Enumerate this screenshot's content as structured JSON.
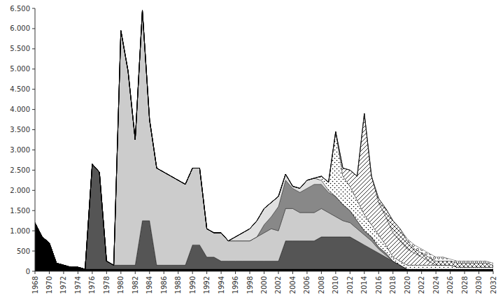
{
  "chart_data": {
    "type": "area",
    "stacked": true,
    "x": [
      1968,
      1969,
      1970,
      1971,
      1972,
      1973,
      1974,
      1975,
      1976,
      1977,
      1978,
      1979,
      1980,
      1981,
      1982,
      1983,
      1984,
      1985,
      1986,
      1987,
      1988,
      1989,
      1990,
      1991,
      1992,
      1993,
      1994,
      1995,
      1996,
      1997,
      1998,
      1999,
      2000,
      2001,
      2002,
      2003,
      2004,
      2005,
      2006,
      2007,
      2008,
      2009,
      2010,
      2011,
      2012,
      2013,
      2014,
      2015,
      2016,
      2017,
      2018,
      2019,
      2020,
      2021,
      2022,
      2023,
      2024,
      2025,
      2026,
      2027,
      2028,
      2029,
      2030,
      2031,
      2032
    ],
    "series": [
      {
        "color": "black",
        "values": [
          1200,
          850,
          700,
          200,
          150,
          100,
          100,
          50,
          50,
          50,
          50,
          50,
          50,
          50,
          50,
          50,
          50,
          50,
          50,
          50,
          50,
          50,
          50,
          50,
          50,
          50,
          50,
          50,
          50,
          50,
          50,
          50,
          50,
          50,
          50,
          50,
          50,
          50,
          50,
          50,
          50,
          50,
          50,
          50,
          50,
          50,
          50,
          50,
          50,
          50,
          50,
          50,
          50,
          50,
          50,
          50,
          50,
          50,
          50,
          50,
          50,
          50,
          50,
          50,
          50
        ]
      },
      {
        "color": "#555555",
        "values": [
          0,
          0,
          0,
          0,
          0,
          0,
          0,
          0,
          2600,
          2400,
          200,
          100,
          100,
          100,
          100,
          1200,
          1200,
          100,
          100,
          100,
          100,
          100,
          600,
          600,
          300,
          300,
          200,
          200,
          200,
          200,
          200,
          200,
          200,
          200,
          200,
          700,
          700,
          700,
          700,
          700,
          800,
          800,
          800,
          800,
          800,
          700,
          600,
          500,
          400,
          300,
          200,
          100,
          0,
          0,
          0,
          0,
          0,
          0,
          0,
          0,
          0,
          0,
          0,
          0,
          0
        ]
      },
      {
        "color": "#cccccc",
        "values": [
          0,
          0,
          0,
          0,
          0,
          0,
          0,
          0,
          0,
          0,
          0,
          0,
          5800,
          4800,
          3100,
          5200,
          2500,
          2400,
          2300,
          2200,
          2100,
          2000,
          1900,
          1900,
          700,
          600,
          700,
          500,
          500,
          500,
          500,
          600,
          700,
          800,
          750,
          800,
          800,
          700,
          700,
          700,
          700,
          600,
          500,
          400,
          350,
          300,
          250,
          200,
          100,
          50,
          0,
          0,
          0,
          0,
          0,
          0,
          0,
          0,
          0,
          0,
          0,
          0,
          0,
          0,
          0
        ]
      },
      {
        "color": "#888888",
        "values": [
          0,
          0,
          0,
          0,
          0,
          0,
          0,
          0,
          0,
          0,
          0,
          0,
          0,
          0,
          0,
          0,
          0,
          0,
          0,
          0,
          0,
          0,
          0,
          0,
          0,
          0,
          0,
          0,
          0,
          0,
          0,
          0,
          200,
          300,
          600,
          700,
          500,
          500,
          600,
          700,
          600,
          500,
          500,
          400,
          300,
          200,
          100,
          100,
          50,
          50,
          0,
          0,
          0,
          0,
          0,
          0,
          0,
          0,
          0,
          0,
          0,
          0,
          0,
          0,
          0
        ]
      },
      {
        "color": "#e0e0e0",
        "values": [
          0,
          0,
          0,
          0,
          0,
          0,
          0,
          0,
          0,
          0,
          0,
          0,
          0,
          0,
          0,
          0,
          0,
          0,
          0,
          0,
          0,
          0,
          0,
          0,
          0,
          0,
          0,
          0,
          100,
          200,
          300,
          400,
          400,
          350,
          250,
          150,
          50,
          100,
          200,
          150,
          100,
          50,
          0,
          0,
          0,
          0,
          0,
          0,
          0,
          0,
          0,
          0,
          0,
          0,
          0,
          0,
          0,
          0,
          0,
          0,
          0,
          0,
          0,
          0,
          0
        ]
      },
      {
        "color": "white",
        "values": [
          0,
          0,
          0,
          0,
          0,
          0,
          0,
          0,
          0,
          0,
          0,
          0,
          0,
          0,
          0,
          0,
          0,
          0,
          0,
          0,
          0,
          0,
          0,
          0,
          0,
          0,
          0,
          0,
          0,
          0,
          0,
          0,
          0,
          0,
          0,
          0,
          0,
          0,
          0,
          0,
          100,
          200,
          1600,
          700,
          600,
          500,
          400,
          300,
          300,
          200,
          100,
          100,
          100,
          100,
          100,
          100,
          100,
          100,
          100,
          50,
          50,
          50,
          50,
          50,
          50
        ]
      },
      {
        "color": "white",
        "values": [
          0,
          0,
          0,
          0,
          0,
          0,
          0,
          0,
          0,
          0,
          0,
          0,
          0,
          0,
          0,
          0,
          0,
          0,
          0,
          0,
          0,
          0,
          0,
          0,
          0,
          0,
          0,
          0,
          0,
          0,
          0,
          0,
          0,
          0,
          0,
          0,
          0,
          0,
          0,
          0,
          0,
          0,
          0,
          200,
          400,
          600,
          2500,
          1200,
          800,
          700,
          600,
          500,
          400,
          300,
          200,
          100,
          0,
          0,
          0,
          0,
          0,
          0,
          0,
          0,
          0
        ]
      },
      {
        "color": "white",
        "values": [
          0,
          0,
          0,
          0,
          0,
          0,
          0,
          0,
          0,
          0,
          0,
          0,
          0,
          0,
          0,
          0,
          0,
          0,
          0,
          0,
          0,
          0,
          0,
          0,
          0,
          0,
          0,
          0,
          0,
          0,
          0,
          0,
          0,
          0,
          0,
          0,
          0,
          0,
          0,
          0,
          0,
          0,
          0,
          0,
          0,
          0,
          0,
          0,
          100,
          200,
          300,
          300,
          200,
          100,
          100,
          100,
          100,
          100,
          100,
          100,
          100,
          100,
          100,
          100,
          50
        ]
      },
      {
        "color": "white",
        "values": [
          0,
          0,
          0,
          0,
          0,
          0,
          0,
          0,
          0,
          0,
          0,
          0,
          0,
          0,
          0,
          0,
          0,
          0,
          0,
          0,
          0,
          0,
          0,
          0,
          0,
          0,
          0,
          0,
          0,
          0,
          0,
          0,
          0,
          0,
          0,
          0,
          0,
          0,
          0,
          0,
          0,
          0,
          0,
          0,
          0,
          0,
          0,
          0,
          0,
          0,
          0,
          0,
          50,
          100,
          100,
          100,
          100,
          100,
          50,
          50,
          50,
          50,
          50,
          50,
          50
        ]
      }
    ],
    "xlim": [
      1968,
      2032
    ],
    "xticks": [
      1968,
      1970,
      1972,
      1974,
      1976,
      1978,
      1980,
      1982,
      1984,
      1986,
      1988,
      1990,
      1992,
      1994,
      1996,
      1998,
      2000,
      2002,
      2004,
      2006,
      2008,
      2010,
      2012,
      2014,
      2016,
      2018,
      2020,
      2022,
      2024,
      2026,
      2028,
      2030,
      2032
    ],
    "ylim": [
      0,
      6500
    ],
    "yticks": [
      0,
      500,
      {
        "value": 1000,
        "label": "1.000"
      },
      {
        "value": 1500,
        "label": "1.500"
      },
      {
        "value": 2000,
        "label": "2.000"
      },
      {
        "value": 2500,
        "label": "2.500"
      },
      {
        "value": 3000,
        "label": "3.000"
      },
      {
        "value": 3500,
        "label": "3.500"
      },
      {
        "value": 4000,
        "label": "4.000"
      },
      {
        "value": 4500,
        "label": "4.500"
      },
      {
        "value": 5000,
        "label": "5.000"
      },
      {
        "value": 5500,
        "label": "5.500"
      },
      {
        "value": 6000,
        "label": "6.000"
      },
      {
        "value": 6500,
        "label": "6.500"
      }
    ],
    "grid": false
  }
}
